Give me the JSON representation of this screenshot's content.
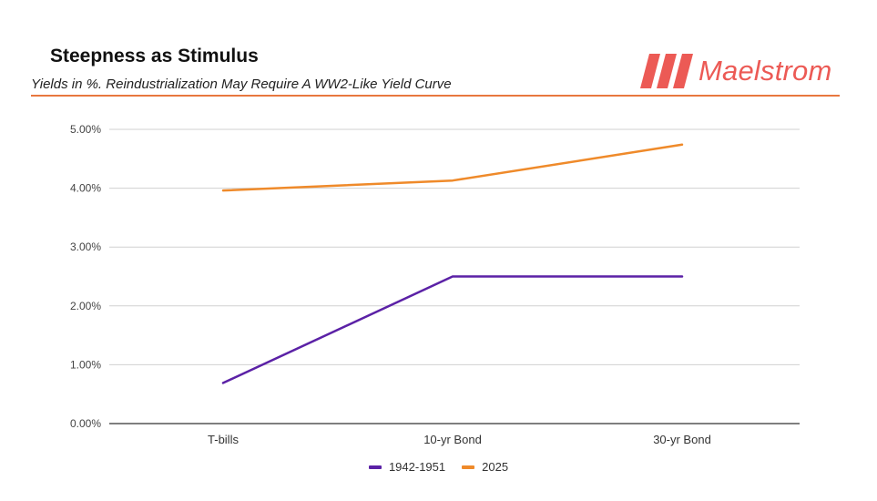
{
  "header": {
    "title": "Steepness as Stimulus",
    "subtitle": "Yields in %. Reindustrialization May Require A WW2-Like Yield Curve",
    "brand": "Maelstrom",
    "brand_color": "#ec5a55",
    "rule_color": "#e8773f"
  },
  "chart_data": {
    "type": "line",
    "title": "Steepness as Stimulus",
    "subtitle": "Yields in %. Reindustrialization May Require A WW2-Like Yield Curve",
    "xlabel": "",
    "ylabel": "",
    "categories": [
      "T-bills",
      "10-yr Bond",
      "30-yr Bond"
    ],
    "ylim": [
      0,
      5
    ],
    "yticks": [
      0,
      1,
      2,
      3,
      4,
      5
    ],
    "ytick_labels": [
      "0.00%",
      "1.00%",
      "2.00%",
      "3.00%",
      "4.00%",
      "5.00%"
    ],
    "grid": true,
    "legend_position": "bottom",
    "series": [
      {
        "name": "1942-1951",
        "color": "#5b21a6",
        "values": [
          0.69,
          2.5,
          2.5
        ]
      },
      {
        "name": "2025",
        "color": "#ef8a2a",
        "values": [
          3.96,
          4.13,
          4.74
        ]
      }
    ]
  }
}
